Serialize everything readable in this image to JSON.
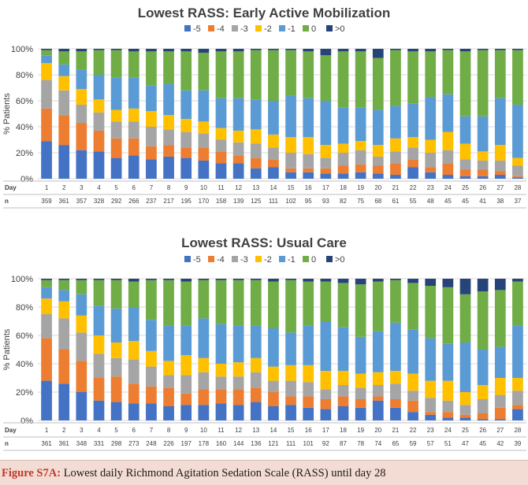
{
  "colors": {
    "-5": "#4472c4",
    "-4": "#ed7d31",
    "-3": "#a5a5a5",
    "-2": "#ffc000",
    "-1": "#5b9bd5",
    "0": "#70ad47",
    ">0": "#264478"
  },
  "caption": {
    "label": "Figure S7A:",
    "text": " Lowest daily Richmond Agitation Sedation Scale (RASS) until day 28"
  },
  "chart_data": [
    {
      "type": "bar",
      "stacked": true,
      "title": "Lowest RASS: Early Active Mobilization",
      "xlabel": "Day",
      "ylabel": "% Patients",
      "ylim": [
        0,
        100
      ],
      "yticks": [
        "0%",
        "20%",
        "40%",
        "60%",
        "80%",
        "100%"
      ],
      "grid": true,
      "legend": "top",
      "row_labels": {
        "day": "Day",
        "n": "n"
      },
      "categories": [
        "1",
        "2",
        "3",
        "4",
        "5",
        "6",
        "7",
        "8",
        "9",
        "10",
        "11",
        "12",
        "13",
        "14",
        "15",
        "16",
        "17",
        "18",
        "19",
        "20",
        "21",
        "22",
        "23",
        "24",
        "25",
        "26",
        "27",
        "28"
      ],
      "n": [
        "359",
        "361",
        "357",
        "328",
        "292",
        "266",
        "237",
        "217",
        "195",
        "170",
        "158",
        "139",
        "125",
        "111",
        "102",
        "95",
        "93",
        "82",
        "75",
        "68",
        "61",
        "55",
        "48",
        "45",
        "45",
        "41",
        "38",
        "37"
      ],
      "series": [
        {
          "name": "-5",
          "values": [
            29,
            26,
            22,
            21,
            16,
            18,
            15,
            17,
            16,
            14,
            12,
            12,
            8,
            9,
            5,
            5,
            4,
            4,
            5,
            4,
            3,
            9,
            5,
            3,
            2,
            2,
            3,
            1
          ]
        },
        {
          "name": "-4",
          "values": [
            25,
            23,
            21,
            16,
            15,
            13,
            10,
            9,
            8,
            10,
            9,
            6,
            8,
            6,
            3,
            3,
            4,
            6,
            6,
            6,
            9,
            6,
            4,
            9,
            5,
            5,
            3,
            1
          ]
        },
        {
          "name": "-3",
          "values": [
            22,
            19,
            14,
            14,
            13,
            13,
            15,
            12,
            12,
            11,
            9,
            10,
            11,
            9,
            12,
            11,
            8,
            10,
            11,
            7,
            9,
            9,
            11,
            10,
            8,
            7,
            8,
            8
          ]
        },
        {
          "name": "-2",
          "values": [
            13,
            11,
            12,
            10,
            9,
            10,
            12,
            11,
            10,
            9,
            9,
            9,
            11,
            10,
            12,
            13,
            10,
            7,
            7,
            9,
            10,
            8,
            10,
            14,
            12,
            7,
            12,
            6
          ]
        },
        {
          "name": "-1",
          "values": [
            6,
            9,
            15,
            19,
            25,
            24,
            20,
            24,
            22,
            24,
            23,
            25,
            23,
            26,
            32,
            30,
            34,
            28,
            26,
            27,
            25,
            26,
            33,
            29,
            21,
            27,
            36,
            41
          ]
        },
        {
          "name": "0",
          "values": [
            4,
            10,
            14,
            19,
            21,
            20,
            26,
            25,
            30,
            29,
            36,
            36,
            38,
            39,
            35,
            36,
            35,
            43,
            43,
            40,
            43,
            40,
            35,
            34,
            50,
            51,
            37,
            42
          ]
        },
        {
          "name": ">0",
          "values": [
            1,
            2,
            2,
            1,
            1,
            2,
            2,
            2,
            2,
            3,
            2,
            2,
            1,
            1,
            1,
            2,
            5,
            2,
            2,
            7,
            1,
            2,
            2,
            1,
            2,
            1,
            1,
            1
          ]
        }
      ]
    },
    {
      "type": "bar",
      "stacked": true,
      "title": "Lowest RASS: Usual Care",
      "xlabel": "Day",
      "ylabel": "% Patients",
      "ylim": [
        0,
        100
      ],
      "yticks": [
        "0%",
        "20%",
        "40%",
        "60%",
        "80%",
        "100%"
      ],
      "grid": true,
      "legend": "top",
      "row_labels": {
        "day": "Day",
        "n": "n"
      },
      "categories": [
        "1",
        "2",
        "3",
        "4",
        "5",
        "6",
        "7",
        "8",
        "9",
        "10",
        "11",
        "12",
        "13",
        "14",
        "15",
        "16",
        "17",
        "18",
        "19",
        "20",
        "21",
        "22",
        "23",
        "24",
        "25",
        "26",
        "27",
        "28"
      ],
      "n": [
        "361",
        "361",
        "348",
        "331",
        "298",
        "273",
        "248",
        "226",
        "197",
        "178",
        "160",
        "144",
        "136",
        "121",
        "111",
        "101",
        "92",
        "87",
        "78",
        "74",
        "65",
        "59",
        "57",
        "51",
        "47",
        "45",
        "42",
        "39"
      ],
      "series": [
        {
          "name": "-5",
          "values": [
            28,
            26,
            20,
            14,
            13,
            12,
            12,
            10,
            11,
            11,
            12,
            11,
            13,
            10,
            11,
            9,
            8,
            10,
            9,
            14,
            9,
            6,
            4,
            2,
            2,
            1,
            1,
            8
          ]
        },
        {
          "name": "-4",
          "values": [
            30,
            24,
            22,
            16,
            18,
            14,
            12,
            13,
            8,
            11,
            10,
            11,
            10,
            10,
            6,
            8,
            7,
            7,
            6,
            3,
            6,
            8,
            2,
            4,
            2,
            4,
            8,
            3
          ]
        },
        {
          "name": "-3",
          "values": [
            17,
            22,
            20,
            17,
            13,
            17,
            14,
            9,
            13,
            12,
            9,
            9,
            11,
            8,
            11,
            10,
            7,
            8,
            8,
            8,
            11,
            7,
            10,
            8,
            7,
            10,
            9,
            10
          ]
        },
        {
          "name": "-2",
          "values": [
            11,
            12,
            12,
            13,
            11,
            13,
            11,
            10,
            14,
            10,
            9,
            10,
            10,
            10,
            11,
            12,
            13,
            10,
            10,
            9,
            9,
            12,
            12,
            14,
            9,
            10,
            12,
            9
          ]
        },
        {
          "name": "-1",
          "values": [
            8,
            8,
            15,
            21,
            24,
            24,
            22,
            25,
            21,
            28,
            28,
            26,
            23,
            27,
            23,
            28,
            35,
            31,
            26,
            29,
            34,
            31,
            30,
            26,
            35,
            25,
            22,
            37
          ]
        },
        {
          "name": "0",
          "values": [
            5,
            7,
            10,
            18,
            20,
            18,
            28,
            32,
            31,
            27,
            31,
            32,
            32,
            33,
            37,
            31,
            28,
            31,
            37,
            35,
            30,
            33,
            37,
            40,
            34,
            41,
            40,
            31
          ]
        },
        {
          "name": ">0",
          "values": [
            1,
            1,
            1,
            1,
            1,
            2,
            1,
            1,
            2,
            1,
            1,
            1,
            1,
            2,
            1,
            2,
            2,
            3,
            4,
            2,
            1,
            3,
            5,
            6,
            11,
            9,
            8,
            2
          ]
        }
      ]
    }
  ]
}
